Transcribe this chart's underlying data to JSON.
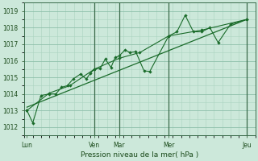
{
  "xlabel": "Pression niveau de la mer( hPa )",
  "background_color": "#cce8da",
  "grid_color_major": "#8dbfaa",
  "grid_color_minor": "#aad4c0",
  "line_color": "#1a6b2a",
  "ylim": [
    1011.5,
    1019.5
  ],
  "xlim": [
    0,
    28
  ],
  "yticks": [
    1012,
    1013,
    1014,
    1015,
    1016,
    1017,
    1018,
    1019
  ],
  "xtick_labels": [
    "Lun",
    "Ven",
    "Mar",
    "Mer",
    "Jeu"
  ],
  "xtick_positions": [
    0.3,
    8.5,
    11.5,
    17.5,
    27.0
  ],
  "vline_positions": [
    8.5,
    11.5,
    17.5,
    27.0
  ],
  "series1": [
    [
      0.3,
      1013.0
    ],
    [
      1.0,
      1012.25
    ],
    [
      2.0,
      1013.9
    ],
    [
      3.0,
      1014.0
    ],
    [
      3.8,
      1014.0
    ],
    [
      4.5,
      1014.4
    ],
    [
      5.2,
      1014.5
    ],
    [
      5.9,
      1014.9
    ],
    [
      6.8,
      1015.2
    ],
    [
      7.5,
      1014.9
    ],
    [
      8.0,
      1015.25
    ],
    [
      8.5,
      1015.5
    ],
    [
      9.2,
      1015.55
    ],
    [
      9.8,
      1016.1
    ],
    [
      10.5,
      1015.6
    ],
    [
      11.0,
      1016.2
    ],
    [
      11.5,
      1016.3
    ],
    [
      12.2,
      1016.65
    ],
    [
      12.8,
      1016.5
    ],
    [
      13.5,
      1016.55
    ],
    [
      14.5,
      1015.4
    ],
    [
      15.2,
      1015.35
    ],
    [
      17.5,
      1017.5
    ],
    [
      18.5,
      1017.75
    ],
    [
      19.5,
      1018.75
    ],
    [
      20.5,
      1017.75
    ],
    [
      21.5,
      1017.75
    ],
    [
      22.5,
      1018.0
    ],
    [
      23.5,
      1017.1
    ],
    [
      25.0,
      1018.2
    ],
    [
      27.0,
      1018.5
    ]
  ],
  "series2": [
    [
      0.3,
      1013.0
    ],
    [
      3.0,
      1014.05
    ],
    [
      5.5,
      1014.5
    ],
    [
      8.5,
      1015.5
    ],
    [
      11.5,
      1016.15
    ],
    [
      14.0,
      1016.5
    ],
    [
      17.5,
      1017.5
    ],
    [
      21.5,
      1017.85
    ],
    [
      27.0,
      1018.5
    ]
  ],
  "trend_line": [
    [
      0.3,
      1013.2
    ],
    [
      27.0,
      1018.5
    ]
  ]
}
